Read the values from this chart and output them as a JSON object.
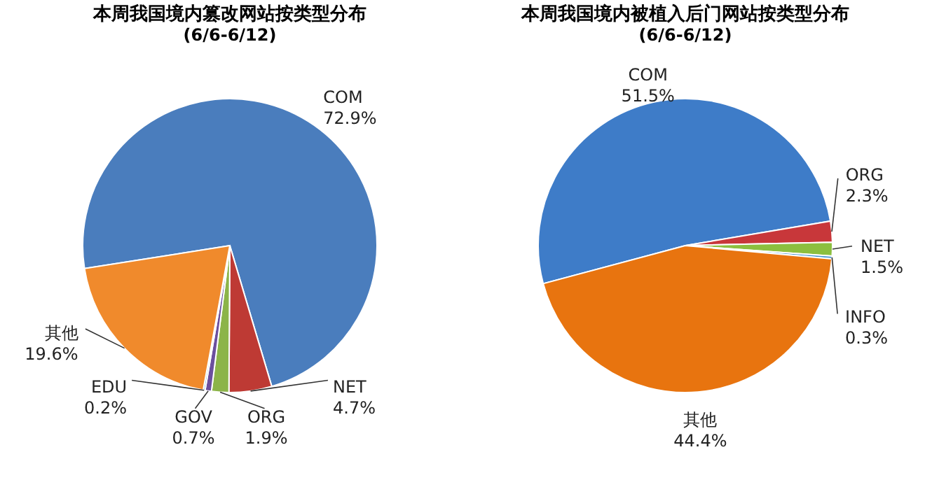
{
  "chart_data": [
    {
      "type": "pie",
      "title": "本周我国境内篡改网站按类型分布",
      "subtitle": "(6/6-6/12)",
      "categories": [
        "COM",
        "NET",
        "ORG",
        "GOV",
        "EDU",
        "其他"
      ],
      "values": [
        72.9,
        4.7,
        1.9,
        0.7,
        0.2,
        19.6
      ],
      "value_labels": [
        "72.9%",
        "4.7%",
        "1.9%",
        "0.7%",
        "0.2%",
        "19.6%"
      ],
      "colors": [
        "#4a7dbd",
        "#be3a34",
        "#8cb449",
        "#6b4f9e",
        "#4aa8c8",
        "#f08a2c"
      ],
      "legend": false
    },
    {
      "type": "pie",
      "title": "本周我国境内被植入后门网站按类型分布",
      "subtitle": "(6/6-6/12)",
      "categories": [
        "COM",
        "ORG",
        "NET",
        "INFO",
        "其他"
      ],
      "values": [
        51.5,
        2.3,
        1.5,
        0.3,
        44.4
      ],
      "value_labels": [
        "51.5%",
        "2.3%",
        "1.5%",
        "0.3%",
        "44.4%"
      ],
      "colors": [
        "#3e7cc8",
        "#c8373a",
        "#8cbf3f",
        "#3d8fd1",
        "#e8740f"
      ],
      "legend": false
    }
  ]
}
